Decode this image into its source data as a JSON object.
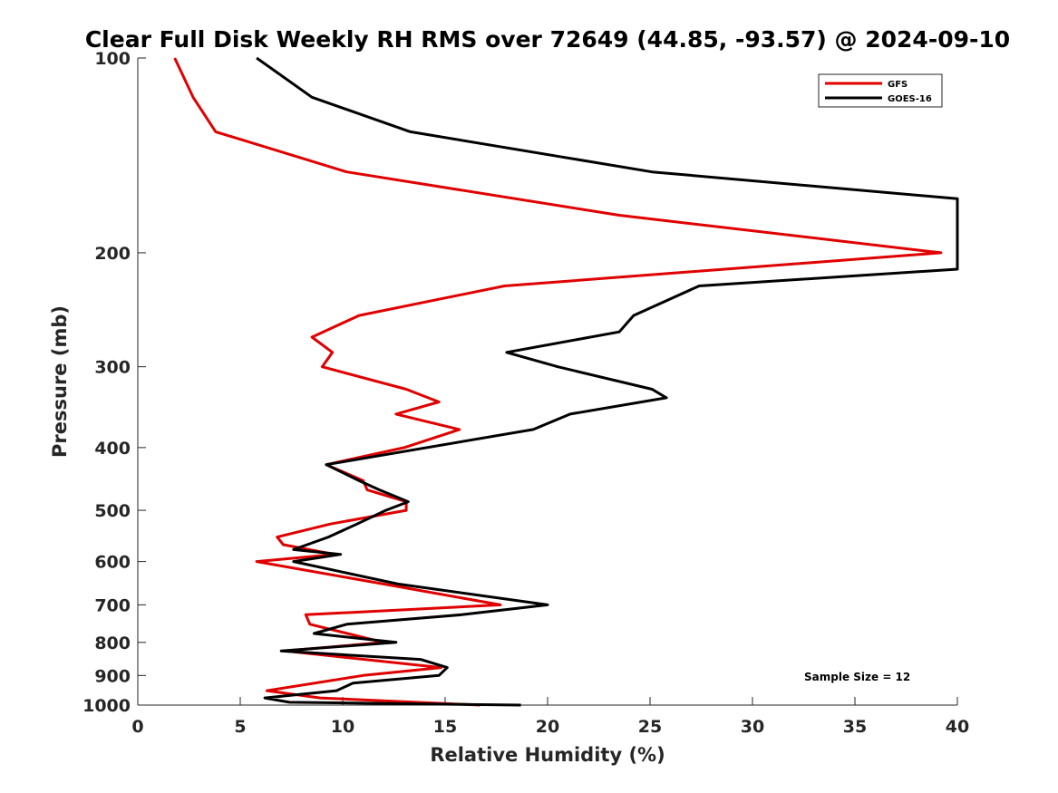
{
  "chart_data": {
    "type": "line",
    "title": "Clear Full Disk Weekly RH RMS over 72649 (44.85, -93.57) @ 2024-09-10",
    "xlabel": "Relative Humidity (%)",
    "ylabel": "Pressure (mb)",
    "xlim": [
      0,
      40
    ],
    "ylim": [
      100,
      1000
    ],
    "y_scale": "log",
    "y_reversed": true,
    "x_ticks": [
      "0",
      "5",
      "10",
      "15",
      "20",
      "25",
      "30",
      "35",
      "40"
    ],
    "y_ticks": [
      "100",
      "200",
      "300",
      "400",
      "500",
      "600",
      "700",
      "800",
      "900",
      "1000"
    ],
    "grid": false,
    "legend_position": "top-right",
    "annotation": "Sample Size = 12",
    "series": [
      {
        "name": "GFS",
        "color": "#e00000",
        "points": [
          [
            1.8,
            100
          ],
          [
            2.7,
            115
          ],
          [
            3.8,
            130
          ],
          [
            10.2,
            150
          ],
          [
            23.5,
            175
          ],
          [
            39.2,
            200
          ],
          [
            17.9,
            225
          ],
          [
            10.8,
            250
          ],
          [
            8.5,
            270
          ],
          [
            9.5,
            285
          ],
          [
            9.0,
            300
          ],
          [
            13.1,
            325
          ],
          [
            14.7,
            340
          ],
          [
            12.6,
            355
          ],
          [
            15.7,
            375
          ],
          [
            13.0,
            400
          ],
          [
            9.2,
            425
          ],
          [
            11.0,
            450
          ],
          [
            11.2,
            465
          ],
          [
            13.1,
            485
          ],
          [
            13.1,
            500
          ],
          [
            9.4,
            525
          ],
          [
            6.8,
            550
          ],
          [
            7.1,
            565
          ],
          [
            9.6,
            585
          ],
          [
            5.8,
            600
          ],
          [
            12.0,
            650
          ],
          [
            17.7,
            700
          ],
          [
            8.2,
            725
          ],
          [
            8.4,
            750
          ],
          [
            12.0,
            800
          ],
          [
            7.2,
            825
          ],
          [
            14.8,
            875
          ],
          [
            11.0,
            900
          ],
          [
            6.3,
            950
          ],
          [
            8.9,
            975
          ],
          [
            16.7,
            1000
          ]
        ]
      },
      {
        "name": "GOES-16",
        "color": "#000000",
        "points": [
          [
            5.8,
            100
          ],
          [
            8.5,
            115
          ],
          [
            13.3,
            130
          ],
          [
            25.1,
            150
          ],
          [
            40.0,
            165
          ],
          [
            40.0,
            212
          ],
          [
            27.4,
            225
          ],
          [
            24.2,
            250
          ],
          [
            23.5,
            265
          ],
          [
            18.0,
            285
          ],
          [
            20.5,
            300
          ],
          [
            25.1,
            325
          ],
          [
            25.8,
            335
          ],
          [
            21.1,
            355
          ],
          [
            19.3,
            375
          ],
          [
            9.2,
            425
          ],
          [
            10.8,
            450
          ],
          [
            11.8,
            465
          ],
          [
            13.2,
            485
          ],
          [
            12.1,
            500
          ],
          [
            10.7,
            525
          ],
          [
            9.3,
            550
          ],
          [
            7.6,
            575
          ],
          [
            9.9,
            585
          ],
          [
            7.6,
            600
          ],
          [
            12.7,
            650
          ],
          [
            20.0,
            700
          ],
          [
            15.8,
            725
          ],
          [
            10.2,
            750
          ],
          [
            8.6,
            775
          ],
          [
            12.6,
            800
          ],
          [
            7.0,
            825
          ],
          [
            13.8,
            850
          ],
          [
            15.1,
            875
          ],
          [
            14.7,
            900
          ],
          [
            10.5,
            925
          ],
          [
            9.7,
            950
          ],
          [
            6.2,
            975
          ],
          [
            7.4,
            990
          ],
          [
            18.7,
            1000
          ]
        ]
      }
    ]
  }
}
